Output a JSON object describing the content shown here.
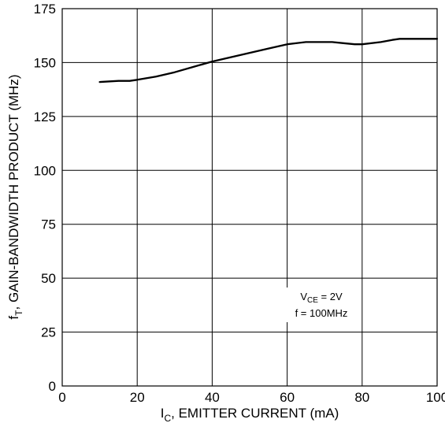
{
  "chart_data": {
    "type": "line",
    "title": "",
    "xlabel": {
      "main": "I",
      "sub": "C",
      "rest": ", EMITTER CURRENT (mA)"
    },
    "ylabel": {
      "main": "f",
      "sub": "T",
      "rest": ", GAIN-BANDWIDTH PRODUCT (MHz)"
    },
    "xlim": [
      0,
      100
    ],
    "ylim": [
      0,
      175
    ],
    "xticks": [
      "0",
      "20",
      "40",
      "60",
      "80",
      "100"
    ],
    "yticks": [
      "0",
      "25",
      "50",
      "75",
      "100",
      "125",
      "150",
      "175"
    ],
    "grid": true,
    "series": [
      {
        "x": [
          10,
          15,
          18,
          20,
          25,
          30,
          35,
          40,
          45,
          50,
          55,
          60,
          65,
          70,
          72,
          75,
          78,
          80,
          85,
          88,
          90,
          95,
          100
        ],
        "y": [
          141,
          141.5,
          141.5,
          142,
          143.5,
          145.5,
          148,
          150.5,
          152.5,
          154.5,
          156.5,
          158.5,
          159.5,
          159.5,
          159.5,
          159,
          158.5,
          158.5,
          159.5,
          160.5,
          161,
          161,
          161
        ],
        "color": "#000000"
      }
    ],
    "annotations": {
      "vce": {
        "main": "V",
        "sub": "CE",
        "rest": " = 2V"
      },
      "freq": "f = 100MHz"
    }
  }
}
